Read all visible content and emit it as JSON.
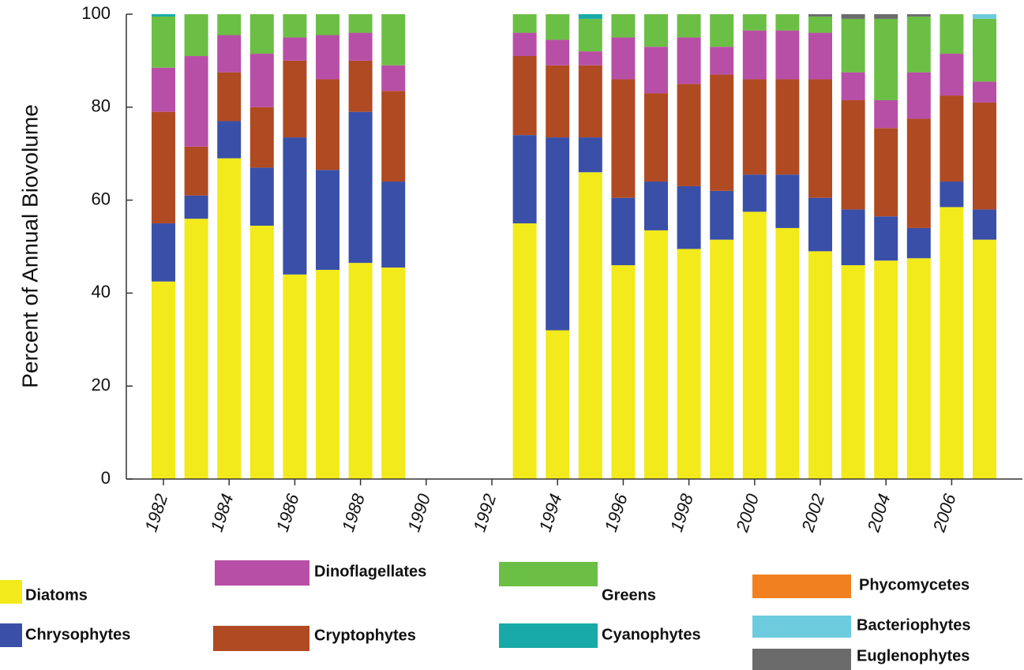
{
  "chart_data": {
    "type": "stacked-bar",
    "y_label": "Percent of Annual Biovolume",
    "categories": [
      "1982",
      null,
      "1984",
      null,
      "1986",
      null,
      "1988",
      null,
      "1990",
      null,
      "1992",
      null,
      "1994",
      null,
      "1996",
      null,
      "1998",
      null,
      "2000",
      null,
      "2002",
      null,
      "2004",
      null,
      "2006",
      null
    ],
    "ylim": [
      0,
      100
    ],
    "yticks": [
      0,
      20,
      40,
      60,
      80,
      100
    ],
    "series": [
      {
        "name": "Diatoms",
        "color": "#f2ea1a",
        "values": [
          42.5,
          56,
          69,
          54.5,
          44,
          45,
          46.5,
          45.5,
          null,
          null,
          null,
          55,
          32,
          66,
          46,
          53.5,
          49.5,
          51.5,
          57.5,
          54,
          49,
          46,
          47,
          47.5,
          58.5,
          51.5
        ]
      },
      {
        "name": "Chrysophytes",
        "color": "#3a4fa8",
        "values": [
          12.5,
          5,
          8,
          12.5,
          29.5,
          21.5,
          32.5,
          18.5,
          null,
          null,
          null,
          19,
          41.5,
          7.5,
          14.5,
          10.5,
          13.5,
          10.5,
          8,
          11.5,
          11.5,
          12,
          9.5,
          6.5,
          5.5,
          6.5
        ]
      },
      {
        "name": "Cryptophytes",
        "color": "#b04a22",
        "values": [
          24,
          10.5,
          10.5,
          13,
          16.5,
          19.5,
          11,
          19.5,
          null,
          null,
          null,
          17,
          15.5,
          15.5,
          25.5,
          19,
          22,
          25,
          20.5,
          20.5,
          25.5,
          23.5,
          19,
          23.5,
          18.5,
          23
        ]
      },
      {
        "name": "Dinoflagellates",
        "color": "#b84fa6",
        "values": [
          9.5,
          19.5,
          8,
          11.5,
          5,
          9.5,
          6,
          5.5,
          null,
          null,
          null,
          5,
          5.5,
          3,
          9,
          10,
          10,
          6,
          10.5,
          10.5,
          10,
          6,
          6,
          10,
          9,
          4.5
        ]
      },
      {
        "name": "Greens",
        "color": "#6cbf45",
        "values": [
          11,
          9,
          4.5,
          8.5,
          5,
          4.5,
          4,
          11,
          null,
          null,
          null,
          4,
          5.5,
          7,
          5,
          7,
          5,
          7,
          3.5,
          3.5,
          3.5,
          11.5,
          17.5,
          12,
          8.5,
          13.5
        ]
      },
      {
        "name": "Cyanophytes",
        "color": "#17aaa8",
        "values": [
          0.5,
          0,
          0,
          0,
          0,
          0,
          0,
          0,
          null,
          null,
          null,
          0,
          0,
          1,
          0,
          0,
          0,
          0,
          0,
          0,
          0,
          0,
          0,
          0,
          0,
          0
        ]
      },
      {
        "name": "Euglenophytes",
        "color": "#6b6b6b",
        "values": [
          0,
          0,
          0,
          0,
          0,
          0,
          0,
          0,
          null,
          null,
          null,
          0,
          0,
          0,
          0,
          0,
          0,
          0,
          0,
          0,
          0.5,
          1,
          1,
          0.5,
          0,
          0
        ]
      },
      {
        "name": "Bacteriophytes",
        "color": "#6ccbdd",
        "values": [
          0,
          0,
          0,
          0,
          0,
          0,
          0,
          0,
          null,
          null,
          null,
          0,
          0,
          0,
          0,
          0,
          0,
          0,
          0,
          0,
          0,
          0,
          0,
          0,
          0,
          1
        ]
      },
      {
        "name": "Phycomycetes",
        "color": "#f08020",
        "values": [
          0,
          0,
          0,
          0,
          0,
          0,
          0,
          0,
          null,
          null,
          null,
          0,
          0,
          0,
          0,
          0,
          0,
          0,
          0,
          0,
          0,
          0,
          0,
          0,
          0,
          0
        ]
      }
    ]
  }
}
